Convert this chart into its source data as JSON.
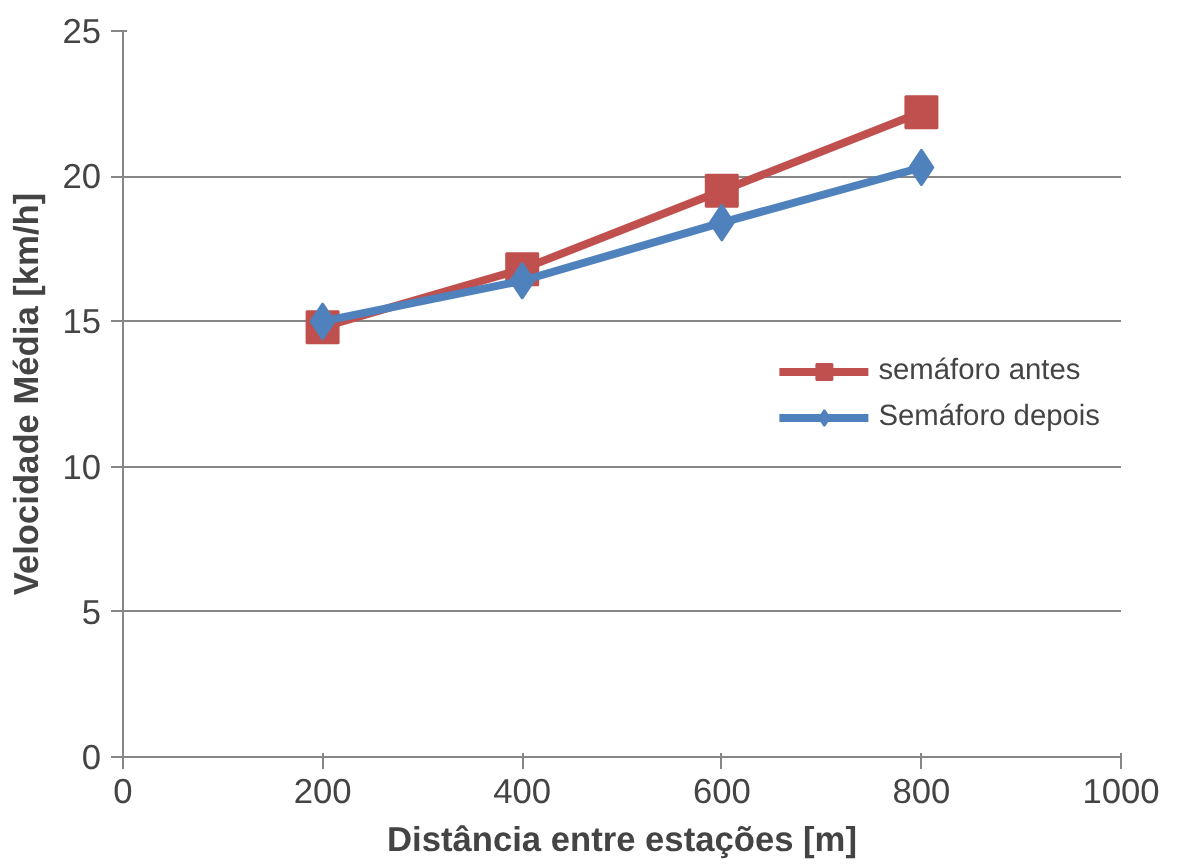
{
  "chart_data": {
    "type": "line",
    "xlabel": "Distância entre estações [m]",
    "ylabel": "Velocidade Média [km/h]",
    "x": [
      200,
      400,
      600,
      800
    ],
    "series": [
      {
        "name": "semáforo antes",
        "color": "#c0504d",
        "values": [
          14.8,
          16.8,
          19.5,
          22.2
        ],
        "marker": "square"
      },
      {
        "name": "Semáforo depois",
        "color": "#4f81bd",
        "values": [
          15.0,
          16.4,
          18.4,
          20.3
        ],
        "marker": "diamond"
      }
    ],
    "xlim": [
      0,
      1000
    ],
    "xticks": [
      0,
      200,
      400,
      600,
      800,
      1000
    ],
    "ylim": [
      0,
      25
    ],
    "yticks": [
      0,
      5,
      10,
      15,
      20,
      25
    ],
    "grid": "y",
    "legend": "right",
    "line_style": "solid"
  }
}
